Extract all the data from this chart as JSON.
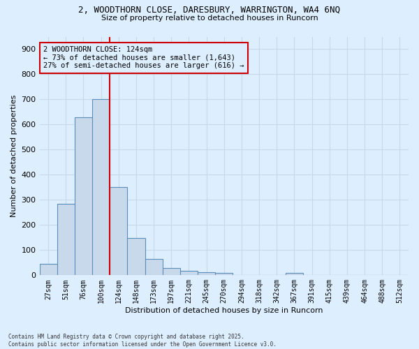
{
  "title_line1": "2, WOODTHORN CLOSE, DARESBURY, WARRINGTON, WA4 6NQ",
  "title_line2": "Size of property relative to detached houses in Runcorn",
  "xlabel": "Distribution of detached houses by size in Runcorn",
  "ylabel": "Number of detached properties",
  "categories": [
    "27sqm",
    "51sqm",
    "76sqm",
    "100sqm",
    "124sqm",
    "148sqm",
    "173sqm",
    "197sqm",
    "221sqm",
    "245sqm",
    "270sqm",
    "294sqm",
    "318sqm",
    "342sqm",
    "367sqm",
    "391sqm",
    "415sqm",
    "439sqm",
    "464sqm",
    "488sqm",
    "512sqm"
  ],
  "values": [
    45,
    285,
    630,
    700,
    350,
    148,
    65,
    30,
    18,
    12,
    8,
    0,
    0,
    0,
    8,
    0,
    0,
    0,
    0,
    0,
    0
  ],
  "bar_color": "#c9d9ec",
  "bar_edge_color": "#5b8db8",
  "red_line_after_index": 3,
  "marker_label": "2 WOODTHORN CLOSE: 124sqm",
  "marker_sub1": "← 73% of detached houses are smaller (1,643)",
  "marker_sub2": "27% of semi-detached houses are larger (616) →",
  "marker_color": "#cc0000",
  "annotation_box_edge": "#cc0000",
  "ylim": [
    0,
    950
  ],
  "yticks": [
    0,
    100,
    200,
    300,
    400,
    500,
    600,
    700,
    800,
    900
  ],
  "grid_color": "#c8d8e8",
  "bg_color": "#ddeeff",
  "footer1": "Contains HM Land Registry data © Crown copyright and database right 2025.",
  "footer2": "Contains public sector information licensed under the Open Government Licence v3.0."
}
